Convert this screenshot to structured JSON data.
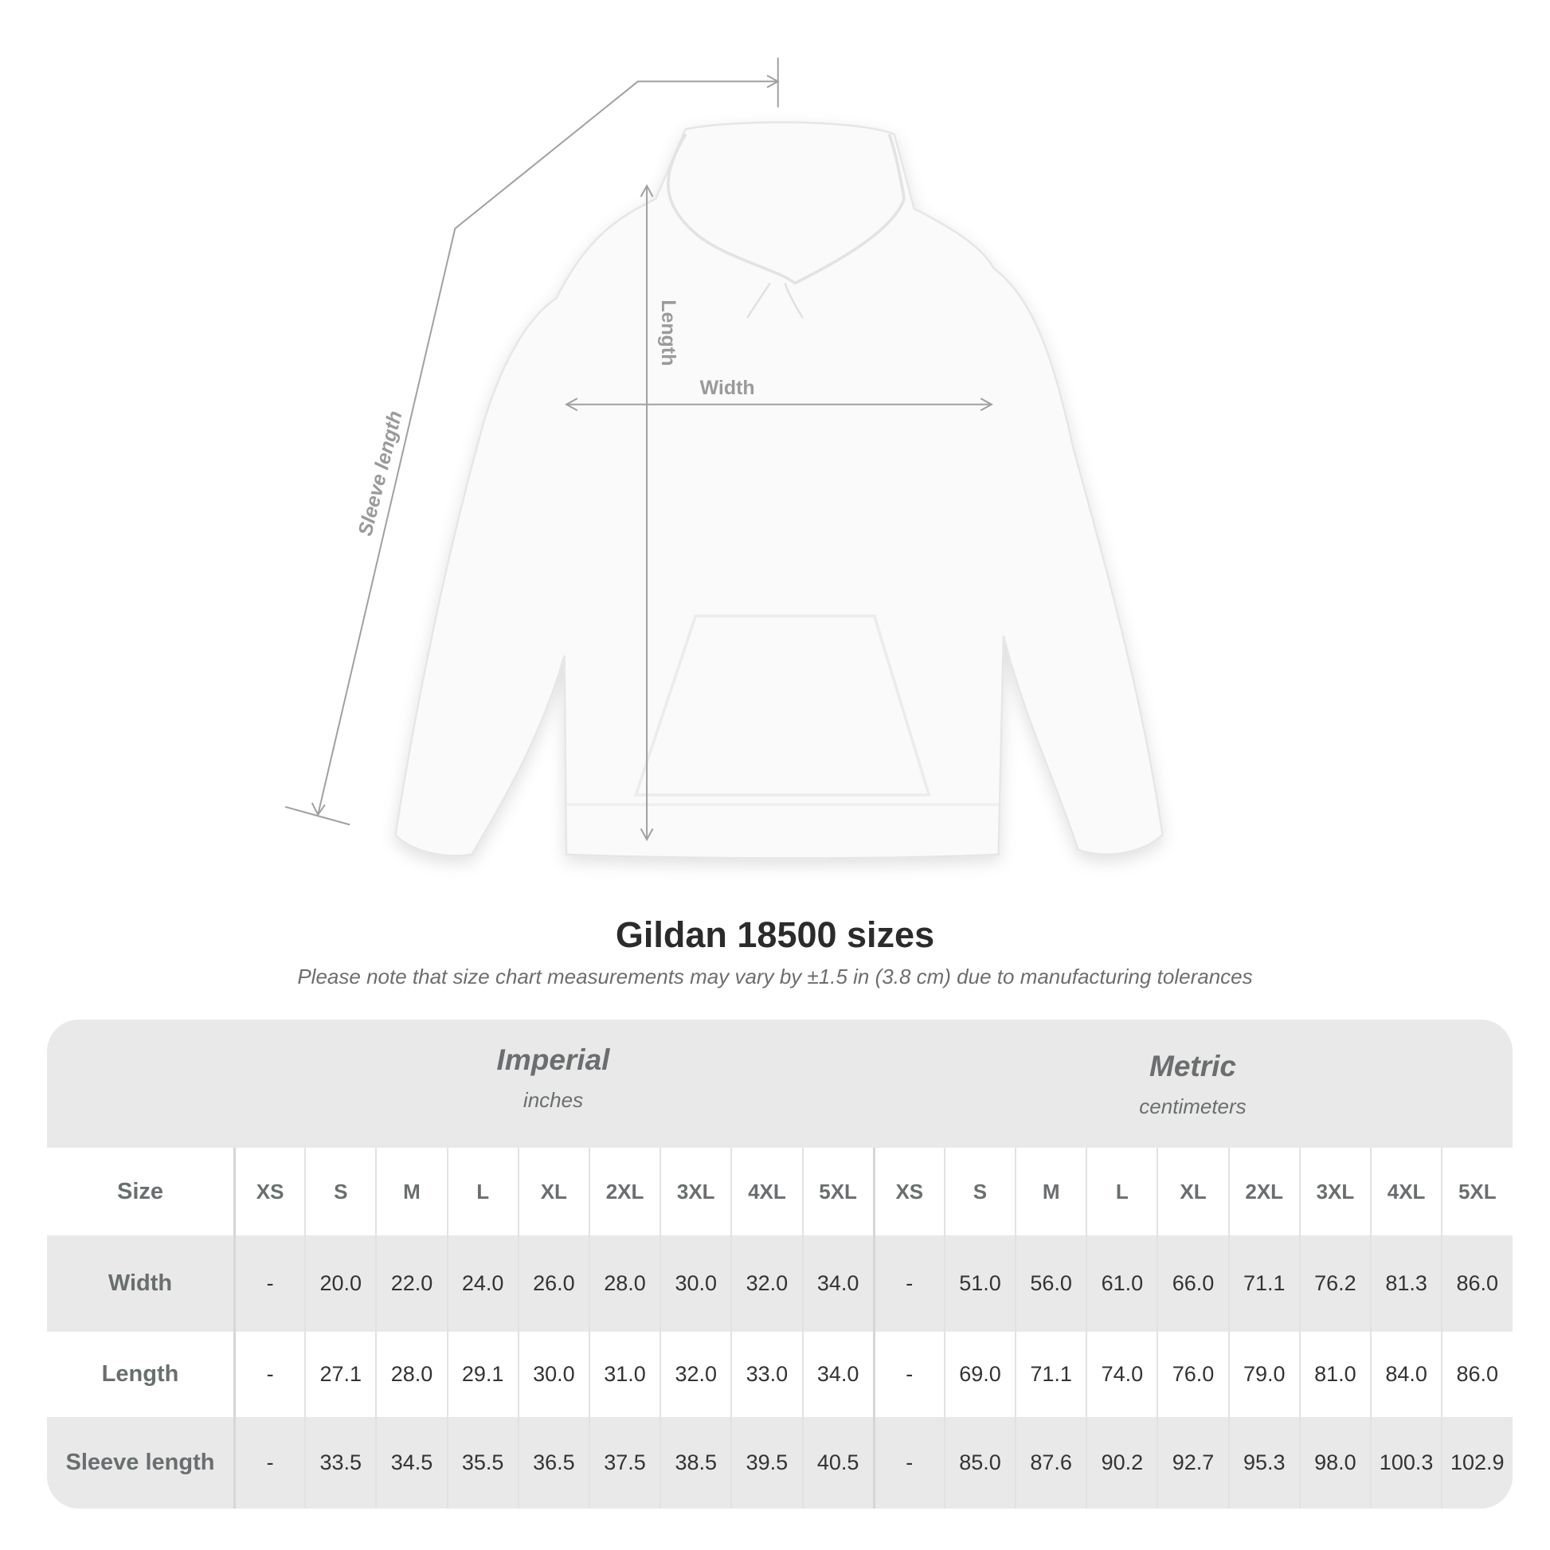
{
  "diagram": {
    "labels": {
      "sleeve": "Sleeve length",
      "length": "Length",
      "width": "Width"
    },
    "colors": {
      "garment": "#ffffff",
      "measure_line": "#a0a0a0",
      "label": "#9a9a9a"
    }
  },
  "title": "Gildan 18500 sizes",
  "note": "Please note that size chart measurements may vary by ±1.5 in (3.8 cm) due to manufacturing tolerances",
  "table": {
    "imperial": {
      "name": "Imperial",
      "unit": "inches"
    },
    "metric": {
      "name": "Metric",
      "unit": "centimeters"
    },
    "size_label": "Size",
    "sizes": [
      "XS",
      "S",
      "M",
      "L",
      "XL",
      "2XL",
      "3XL",
      "4XL",
      "5XL"
    ],
    "rows": [
      {
        "label": "Width",
        "imperial": [
          "-",
          "20.0",
          "22.0",
          "24.0",
          "26.0",
          "28.0",
          "30.0",
          "32.0",
          "34.0"
        ],
        "metric": [
          "-",
          "51.0",
          "56.0",
          "61.0",
          "66.0",
          "71.1",
          "76.2",
          "81.3",
          "86.0"
        ]
      },
      {
        "label": "Length",
        "imperial": [
          "-",
          "27.1",
          "28.0",
          "29.1",
          "30.0",
          "31.0",
          "32.0",
          "33.0",
          "34.0"
        ],
        "metric": [
          "-",
          "69.0",
          "71.1",
          "74.0",
          "76.0",
          "79.0",
          "81.0",
          "84.0",
          "86.0"
        ]
      },
      {
        "label": "Sleeve length",
        "imperial": [
          "-",
          "33.5",
          "34.5",
          "35.5",
          "36.5",
          "37.5",
          "38.5",
          "39.5",
          "40.5"
        ],
        "metric": [
          "-",
          "85.0",
          "87.6",
          "90.2",
          "92.7",
          "95.3",
          "98.0",
          "100.3",
          "102.9"
        ]
      }
    ],
    "colors": {
      "band": "#e9e9e9",
      "label_text": "#6a6e6f",
      "value_text": "#333333"
    }
  }
}
